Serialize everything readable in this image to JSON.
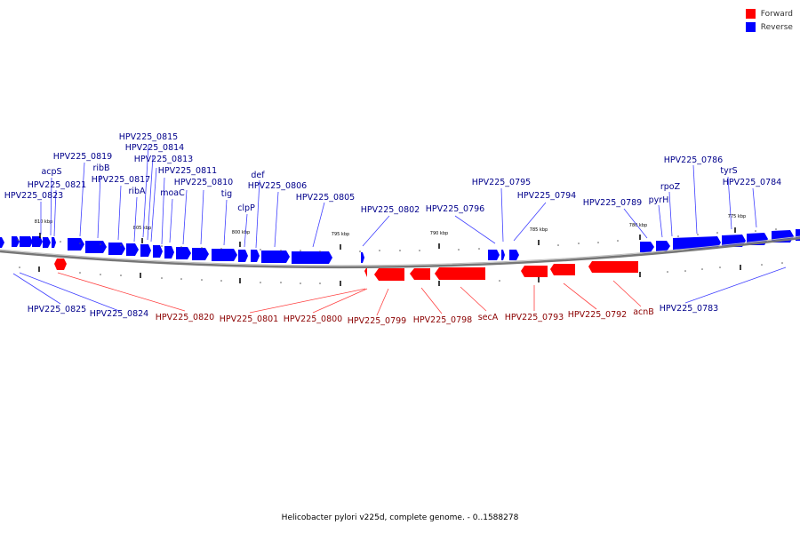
{
  "legend": {
    "forward_label": "Forward",
    "reverse_label": "Reverse",
    "forward_color": "#ff0000",
    "reverse_color": "#0000ff"
  },
  "colors": {
    "forward_label_text": "#8b0000",
    "reverse_label_text": "#00008b",
    "backbone": "#777777",
    "leader_forward": "#ff4040",
    "leader_reverse": "#4040ff"
  },
  "caption": "Helicobacter pylori v225d, complete genome. - 0..1588278",
  "scale_labels": [
    "810 kbp",
    "805 kbp",
    "800 kbp",
    "795 kbp",
    "790 kbp",
    "785 kbp",
    "780 kbp",
    "775 kbp"
  ],
  "reverse_labels": [
    "HPV225_0815",
    "HPV225_0814",
    "HPV225_0813",
    "HPV225_0819",
    "ribB",
    "HPV225_0811",
    "acpS",
    "HPV225_0821",
    "HPV225_0817",
    "HPV225_0810",
    "def",
    "HPV225_0806",
    "ribA",
    "moaC",
    "HPV225_0823",
    "tig",
    "HPV225_0805",
    "clpP",
    "HPV225_0802",
    "HPV225_0796",
    "HPV225_0795",
    "HPV225_0794",
    "HPV225_0789",
    "HPV225_0786",
    "tyrS",
    "rpoZ",
    "HPV225_0784",
    "pyrH",
    "HPV225_0825",
    "HPV225_0824",
    "HPV225_0783"
  ],
  "forward_labels": [
    "HPV225_0820",
    "HPV225_0801",
    "HPV225_0800",
    "HPV225_0799",
    "HPV225_0798",
    "secA",
    "HPV225_0793",
    "HPV225_0792",
    "acnB"
  ]
}
